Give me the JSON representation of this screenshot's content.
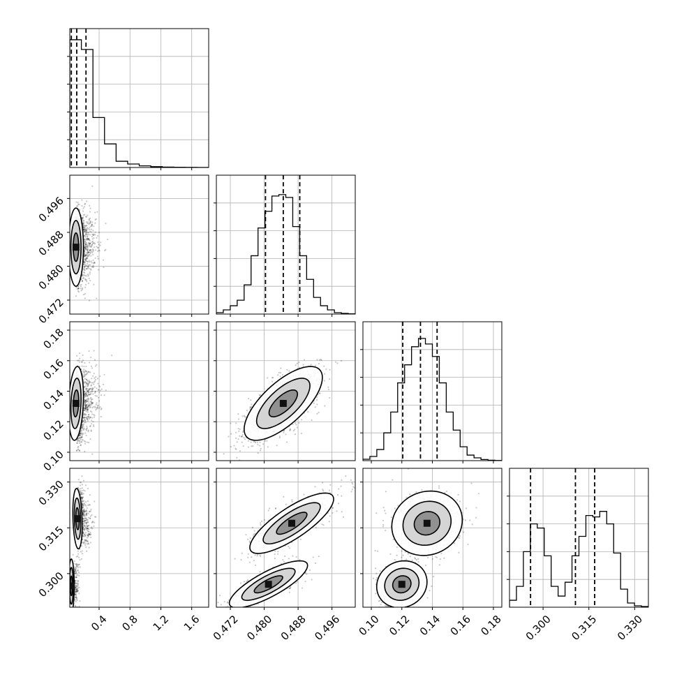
{
  "chart_data": {
    "type": "corner",
    "parameters": [
      {
        "ticks": [
          0.4,
          0.8,
          1.2,
          1.6
        ],
        "tick_labels": [
          "0.4",
          "0.8",
          "1.2",
          "1.6"
        ],
        "range": [
          0.02,
          1.82
        ],
        "quantiles": [
          0.04,
          0.11,
          0.23
        ],
        "hist_counts": [
          0.92,
          0.85,
          0.36,
          0.17,
          0.045,
          0.025,
          0.012,
          0.006,
          0.003,
          0.002,
          0.001,
          0.0005
        ]
      },
      {
        "ticks": [
          0.472,
          0.48,
          0.488,
          0.496
        ],
        "tick_labels": [
          "0.472",
          "0.480",
          "0.488",
          "0.496"
        ],
        "range": [
          0.4687,
          0.5015
        ],
        "quantiles": [
          0.4803,
          0.4845,
          0.4884
        ],
        "hist_counts": [
          0.01,
          0.03,
          0.06,
          0.1,
          0.21,
          0.42,
          0.62,
          0.74,
          0.85,
          0.86,
          0.84,
          0.63,
          0.42,
          0.25,
          0.12,
          0.06,
          0.03,
          0.01,
          0.005,
          0.002
        ]
      },
      {
        "ticks": [
          0.1,
          0.12,
          0.14,
          0.16,
          0.18
        ],
        "tick_labels": [
          "0.10",
          "0.12",
          "0.14",
          "0.16",
          "0.18"
        ],
        "range": [
          0.0945,
          0.1855
        ],
        "quantiles": [
          0.1206,
          0.1322,
          0.1431
        ],
        "hist_counts": [
          0.01,
          0.03,
          0.08,
          0.2,
          0.35,
          0.56,
          0.69,
          0.82,
          0.88,
          0.84,
          0.75,
          0.56,
          0.35,
          0.22,
          0.1,
          0.04,
          0.02,
          0.008,
          0.003,
          0.001
        ]
      },
      {
        "ticks": [
          0.3,
          0.315,
          0.33
        ],
        "tick_labels": [
          "0.300",
          "0.315",
          "0.330"
        ],
        "range": [
          0.289,
          0.3345
        ],
        "quantiles": [
          0.2959,
          0.3106,
          0.3169
        ],
        "hist_counts": [
          0.05,
          0.15,
          0.4,
          0.6,
          0.57,
          0.37,
          0.15,
          0.08,
          0.18,
          0.37,
          0.51,
          0.66,
          0.65,
          0.69,
          0.6,
          0.39,
          0.13,
          0.03,
          0.01,
          0.005
        ]
      }
    ],
    "pairs": [
      {
        "row": 1,
        "col": 0,
        "modes": [
          {
            "mx": 0.1,
            "my": 0.4845,
            "sx": 0.08,
            "sy": 0.0042,
            "rho": 0.0,
            "w": 1
          }
        ]
      },
      {
        "row": 2,
        "col": 0,
        "modes": [
          {
            "mx": 0.1,
            "my": 0.132,
            "sx": 0.08,
            "sy": 0.011,
            "rho": 0.2,
            "w": 1
          }
        ]
      },
      {
        "row": 2,
        "col": 1,
        "modes": [
          {
            "mx": 0.4845,
            "my": 0.132,
            "sx": 0.0042,
            "sy": 0.011,
            "rho": 0.7,
            "w": 1
          }
        ]
      },
      {
        "row": 3,
        "col": 0,
        "modes": [
          {
            "mx": 0.12,
            "my": 0.318,
            "sx": 0.05,
            "sy": 0.0045,
            "rho": -0.2,
            "w": 0.6
          },
          {
            "mx": 0.04,
            "my": 0.296,
            "sx": 0.03,
            "sy": 0.004,
            "rho": 0.0,
            "w": 0.4
          }
        ]
      },
      {
        "row": 3,
        "col": 1,
        "modes": [
          {
            "mx": 0.4865,
            "my": 0.3165,
            "sx": 0.0045,
            "sy": 0.0045,
            "rho": 0.8,
            "w": 0.6
          },
          {
            "mx": 0.481,
            "my": 0.2965,
            "sx": 0.0042,
            "sy": 0.0035,
            "rho": 0.8,
            "w": 0.4
          }
        ]
      },
      {
        "row": 3,
        "col": 2,
        "modes": [
          {
            "mx": 0.1365,
            "my": 0.3165,
            "sx": 0.0105,
            "sy": 0.0048,
            "rho": 0.1,
            "w": 0.6
          },
          {
            "mx": 0.12,
            "my": 0.2965,
            "sx": 0.0075,
            "sy": 0.0035,
            "rho": 0.1,
            "w": 0.4
          }
        ]
      }
    ]
  }
}
